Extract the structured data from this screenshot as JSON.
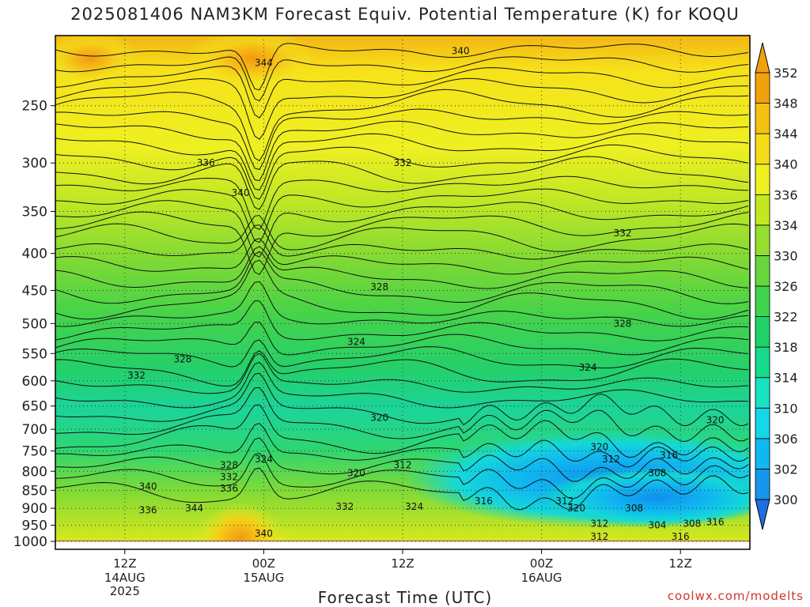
{
  "title": "2025081406 NAM3KM Forecast Equiv. Potential Temperature (K) for KOQU",
  "credit": "coolwx.com/modelts",
  "colors": {
    "ground": "#9c4a2a",
    "colorbar": [
      "#1f6fe0",
      "#1596ea",
      "#10b8f0",
      "#12d8e8",
      "#18e2c0",
      "#16da8c",
      "#1fd268",
      "#3fd44c",
      "#66d63a",
      "#95de2e",
      "#c4e820",
      "#eef021",
      "#f6dc18",
      "#f4c012",
      "#f0a20c"
    ]
  },
  "chart_data": {
    "type": "heatmap",
    "title": "2025081406 NAM3KM Forecast Equiv. Potential Temperature (K) for KOQU",
    "xlabel": "Forecast Time (UTC)",
    "ylabel": "",
    "x_ticks": [
      {
        "label": "12Z",
        "sub": [
          "14AUG",
          "2025"
        ],
        "hour": 6
      },
      {
        "label": "00Z",
        "sub": [
          "15AUG"
        ],
        "hour": 18
      },
      {
        "label": "12Z",
        "sub": [],
        "hour": 30
      },
      {
        "label": "00Z",
        "sub": [
          "16AUG"
        ],
        "hour": 42
      },
      {
        "label": "12Z",
        "sub": [],
        "hour": 54
      }
    ],
    "xlim": [
      0,
      60
    ],
    "y_ticks": [
      250,
      300,
      350,
      400,
      450,
      500,
      550,
      600,
      650,
      700,
      750,
      800,
      850,
      900,
      950,
      1000
    ],
    "ylim": [
      200,
      1000
    ],
    "y_scale": "log",
    "colorbar": {
      "levels": [
        300,
        302,
        306,
        310,
        314,
        318,
        322,
        326,
        330,
        334,
        336,
        340,
        344,
        348,
        352
      ],
      "labels": [
        "300",
        "302",
        "306",
        "310",
        "314",
        "318",
        "322",
        "326",
        "330",
        "334",
        "336",
        "340",
        "344",
        "348",
        "352"
      ]
    },
    "contour_labels": [
      {
        "text": "340",
        "hour": 35,
        "p": 210
      },
      {
        "text": "344",
        "hour": 18,
        "p": 218
      },
      {
        "text": "336",
        "hour": 13,
        "p": 300
      },
      {
        "text": "340",
        "hour": 16,
        "p": 330
      },
      {
        "text": "332",
        "hour": 30,
        "p": 300
      },
      {
        "text": "332",
        "hour": 49,
        "p": 375
      },
      {
        "text": "328",
        "hour": 28,
        "p": 445
      },
      {
        "text": "328",
        "hour": 49,
        "p": 500
      },
      {
        "text": "328",
        "hour": 11,
        "p": 560
      },
      {
        "text": "332",
        "hour": 7,
        "p": 590
      },
      {
        "text": "324",
        "hour": 26,
        "p": 530
      },
      {
        "text": "324",
        "hour": 46,
        "p": 575
      },
      {
        "text": "320",
        "hour": 28,
        "p": 675
      },
      {
        "text": "320",
        "hour": 57,
        "p": 680
      },
      {
        "text": "320",
        "hour": 47,
        "p": 740
      },
      {
        "text": "316",
        "hour": 53,
        "p": 760
      },
      {
        "text": "312",
        "hour": 48,
        "p": 770
      },
      {
        "text": "312",
        "hour": 30,
        "p": 785
      },
      {
        "text": "308",
        "hour": 52,
        "p": 805
      },
      {
        "text": "328",
        "hour": 15,
        "p": 785
      },
      {
        "text": "332",
        "hour": 15,
        "p": 815
      },
      {
        "text": "336",
        "hour": 15,
        "p": 845
      },
      {
        "text": "340",
        "hour": 8,
        "p": 840
      },
      {
        "text": "336",
        "hour": 8,
        "p": 905
      },
      {
        "text": "344",
        "hour": 12,
        "p": 900
      },
      {
        "text": "324",
        "hour": 18,
        "p": 770
      },
      {
        "text": "320",
        "hour": 26,
        "p": 805
      },
      {
        "text": "332",
        "hour": 25,
        "p": 895
      },
      {
        "text": "324",
        "hour": 31,
        "p": 895
      },
      {
        "text": "316",
        "hour": 37,
        "p": 880
      },
      {
        "text": "312",
        "hour": 44,
        "p": 880
      },
      {
        "text": "320",
        "hour": 45,
        "p": 900
      },
      {
        "text": "308",
        "hour": 50,
        "p": 900
      },
      {
        "text": "312",
        "hour": 47,
        "p": 945
      },
      {
        "text": "304",
        "hour": 52,
        "p": 950
      },
      {
        "text": "308",
        "hour": 55,
        "p": 945
      },
      {
        "text": "316",
        "hour": 57,
        "p": 940
      },
      {
        "text": "312",
        "hour": 47,
        "p": 985
      },
      {
        "text": "316",
        "hour": 54,
        "p": 985
      },
      {
        "text": "340",
        "hour": 18,
        "p": 975
      }
    ]
  }
}
